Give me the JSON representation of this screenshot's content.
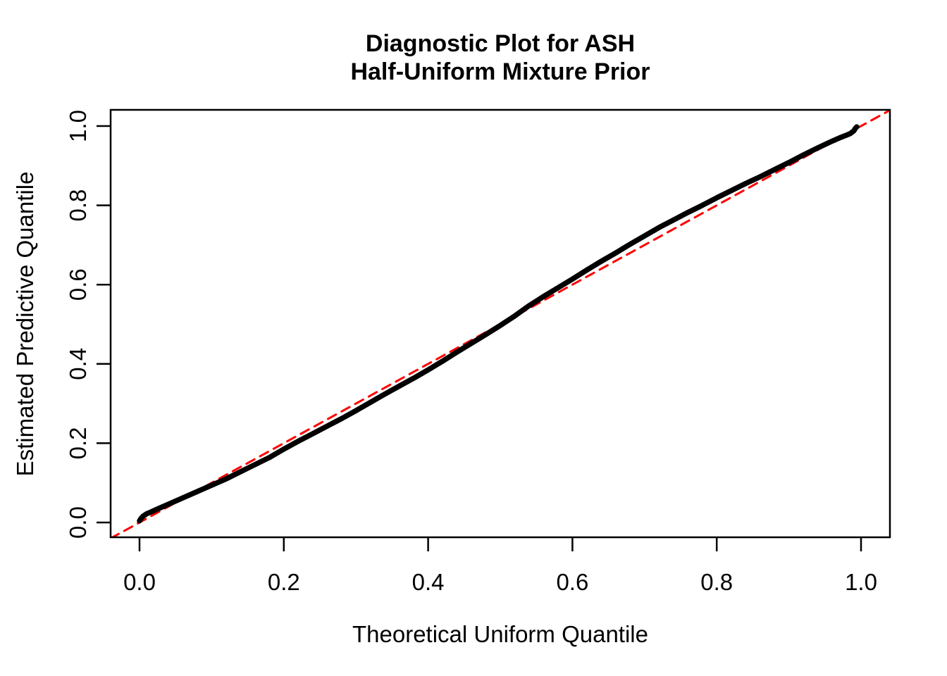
{
  "figure": {
    "title_line1": "Diagnostic Plot for ASH",
    "title_line2": "Half-Uniform Mixture Prior",
    "background_color": "#FFFFFF",
    "text_color": "#000000"
  },
  "chart_data": {
    "type": "line",
    "title": "Diagnostic Plot for ASH Half-Uniform Mixture Prior",
    "xlabel": "Theoretical Uniform Quantile",
    "ylabel": "Estimated Predictive Quantile",
    "xlim": [
      -0.04,
      1.04
    ],
    "ylim": [
      -0.04,
      1.04
    ],
    "grid": false,
    "legend": null,
    "x_ticks": [
      0.0,
      0.2,
      0.4,
      0.6,
      0.8,
      1.0
    ],
    "x_tick_labels": [
      "0.0",
      "0.2",
      "0.4",
      "0.6",
      "0.8",
      "1.0"
    ],
    "y_ticks": [
      0.0,
      0.2,
      0.4,
      0.6,
      0.8,
      1.0
    ],
    "y_tick_labels": [
      "0.0",
      "0.2",
      "0.4",
      "0.6",
      "0.8",
      "1.0"
    ],
    "series": [
      {
        "name": "estimated-predictive-quantile-curve",
        "type": "line",
        "color": "#000000",
        "line_width": 7.5,
        "dash": null,
        "x": [
          0.0,
          0.002,
          0.005,
          0.01,
          0.015,
          0.02,
          0.03,
          0.04,
          0.05,
          0.06,
          0.07,
          0.08,
          0.09,
          0.1,
          0.12,
          0.14,
          0.16,
          0.18,
          0.2,
          0.22,
          0.24,
          0.26,
          0.28,
          0.3,
          0.32,
          0.34,
          0.36,
          0.38,
          0.4,
          0.42,
          0.44,
          0.46,
          0.48,
          0.5,
          0.52,
          0.54,
          0.56,
          0.58,
          0.6,
          0.62,
          0.64,
          0.66,
          0.68,
          0.7,
          0.72,
          0.74,
          0.76,
          0.78,
          0.8,
          0.82,
          0.84,
          0.86,
          0.88,
          0.9,
          0.92,
          0.94,
          0.96,
          0.97,
          0.98,
          0.985,
          0.99,
          0.992,
          0.994
        ],
        "y": [
          0.004,
          0.01,
          0.016,
          0.022,
          0.026,
          0.03,
          0.038,
          0.046,
          0.054,
          0.062,
          0.07,
          0.078,
          0.086,
          0.094,
          0.11,
          0.128,
          0.146,
          0.164,
          0.185,
          0.205,
          0.224,
          0.243,
          0.262,
          0.282,
          0.303,
          0.324,
          0.344,
          0.364,
          0.385,
          0.407,
          0.43,
          0.452,
          0.474,
          0.497,
          0.521,
          0.547,
          0.57,
          0.592,
          0.614,
          0.637,
          0.659,
          0.68,
          0.702,
          0.723,
          0.744,
          0.763,
          0.782,
          0.8,
          0.819,
          0.837,
          0.855,
          0.872,
          0.89,
          0.908,
          0.927,
          0.945,
          0.962,
          0.97,
          0.977,
          0.981,
          0.988,
          0.994,
          0.998
        ]
      },
      {
        "name": "reference-identity-line",
        "type": "line",
        "color": "#FF0000",
        "line_width": 3,
        "dash": "13 9",
        "x": [
          -0.04,
          1.04
        ],
        "y": [
          -0.04,
          1.04
        ]
      }
    ]
  }
}
